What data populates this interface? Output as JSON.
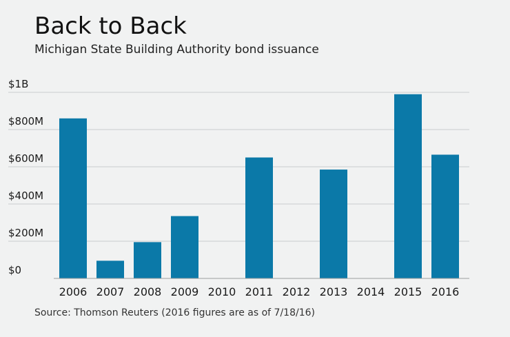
{
  "header": {
    "title": "Back to Back",
    "subtitle": "Michigan State Building Authority bond issuance"
  },
  "footer": {
    "source": "Source: Thomson Reuters (2016 figures are as of 7/18/16)"
  },
  "colors": {
    "bar": "#0b79a8",
    "grid": "#c9cccd",
    "axis": "#9a9d9e",
    "background": "#f1f2f2"
  },
  "chart_data": {
    "type": "bar",
    "title": "Back to Back",
    "subtitle": "Michigan State Building Authority bond issuance",
    "xlabel": "",
    "ylabel": "",
    "categories": [
      "2006",
      "2007",
      "2008",
      "2009",
      "2010",
      "2011",
      "2012",
      "2013",
      "2014",
      "2015",
      "2016"
    ],
    "values": [
      860,
      95,
      195,
      335,
      0,
      650,
      0,
      585,
      0,
      990,
      665
    ],
    "value_units": "millions of dollars",
    "ylim": [
      0,
      1000
    ],
    "yticks": [
      0,
      200,
      400,
      600,
      800,
      1000
    ],
    "ytick_labels": [
      "$0",
      "$200M",
      "$400M",
      "$600M",
      "$800M",
      "$1B"
    ],
    "grid": true,
    "legend": "none"
  }
}
